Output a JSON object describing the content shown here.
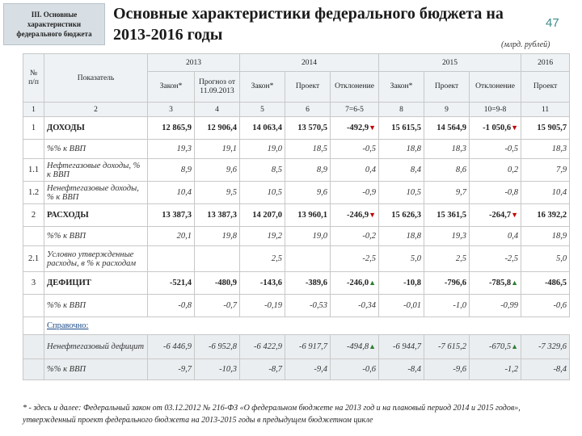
{
  "section_label": "III. Основные характеристики федерального бюджета",
  "title": "Основные характеристики федерального бюджета на 2013-2016 годы",
  "slide_number": "47",
  "units": "(млрд. рублей)",
  "header": {
    "no": "№ п/п",
    "indicator": "Показатель",
    "y2013": "2013",
    "y2014": "2014",
    "y2015": "2015",
    "y2016": "2016",
    "cols": [
      "Закон*",
      "Прогноз от 11.09.2013",
      "Закон*",
      "Проект",
      "Отклонение",
      "Закон*",
      "Проект",
      "Отклонение",
      "Проект"
    ],
    "numbers": [
      "1",
      "2",
      "3",
      "4",
      "5",
      "6",
      "7=6-5",
      "8",
      "9",
      "10=9-8",
      "11"
    ]
  },
  "rows": [
    {
      "no": "1",
      "label": "ДОХОДЫ",
      "style": "bold",
      "values": [
        "12 865,9",
        "12 906,4",
        "14 063,4",
        "13 570,5",
        "-492,9",
        "15 615,5",
        "14 564,9",
        "-1 050,6",
        "15 905,7"
      ],
      "arrows": {
        "4": "down",
        "7": "down"
      }
    },
    {
      "no": "",
      "label": "%% к ВВП",
      "style": "italic",
      "values": [
        "19,3",
        "19,1",
        "19,0",
        "18,5",
        "-0,5",
        "18,8",
        "18,3",
        "-0,5",
        "18,3"
      ]
    },
    {
      "no": "1.1",
      "label": "Нефтегазовые доходы, % к ВВП",
      "style": "italic",
      "values": [
        "8,9",
        "9,6",
        "8,5",
        "8,9",
        "0,4",
        "8,4",
        "8,6",
        "0,2",
        "7,9"
      ]
    },
    {
      "no": "1.2",
      "label": "Ненефтегазовые доходы, % к ВВП",
      "style": "italic",
      "values": [
        "10,4",
        "9,5",
        "10,5",
        "9,6",
        "-0,9",
        "10,5",
        "9,7",
        "-0,8",
        "10,4"
      ]
    },
    {
      "no": "2",
      "label": "РАСХОДЫ",
      "style": "bold",
      "values": [
        "13 387,3",
        "13 387,3",
        "14 207,0",
        "13 960,1",
        "-246,9",
        "15 626,3",
        "15 361,5",
        "-264,7",
        "16 392,2"
      ],
      "arrows": {
        "4": "down",
        "7": "down"
      }
    },
    {
      "no": "",
      "label": "%% к ВВП",
      "style": "italic",
      "values": [
        "20,1",
        "19,8",
        "19,2",
        "19,0",
        "-0,2",
        "18,8",
        "19,3",
        "0,4",
        "18,9"
      ]
    },
    {
      "no": "2.1",
      "label": "Условно утвержденные расходы, в % к расходам",
      "style": "italic",
      "values": [
        "",
        "",
        "2,5",
        "",
        "-2,5",
        "5,0",
        "2,5",
        "-2,5",
        "5,0"
      ]
    },
    {
      "no": "3",
      "label": "ДЕФИЦИТ",
      "style": "bold",
      "values": [
        "-521,4",
        "-480,9",
        "-143,6",
        "-389,6",
        "-246,0",
        "-10,8",
        "-796,6",
        "-785,8",
        "-486,5"
      ],
      "arrows": {
        "4": "up",
        "7": "up"
      }
    },
    {
      "no": "",
      "label": "%% к ВВП",
      "style": "italic",
      "values": [
        "-0,8",
        "-0,7",
        "-0,19",
        "-0,53",
        "-0,34",
        "-0,01",
        "-1,0",
        "-0,99",
        "-0,6"
      ]
    },
    {
      "no": "",
      "label": "Справочно:",
      "style": "link",
      "values": []
    },
    {
      "no": "",
      "label": "Ненефтегазовый дефицит",
      "style": "italic-shade",
      "values": [
        "-6 446,9",
        "-6 952,8",
        "-6 422,9",
        "-6 917,7",
        "-494,8",
        "-6 944,7",
        "-7 615,2",
        "-670,5",
        "-7 329,6"
      ],
      "arrows": {
        "4": "up",
        "7": "up"
      }
    },
    {
      "no": "",
      "label": "%% к ВВП",
      "style": "italic-shade",
      "values": [
        "-9,7",
        "-10,3",
        "-8,7",
        "-9,4",
        "-0,6",
        "-8,4",
        "-9,6",
        "-1,2",
        "-8,4"
      ]
    }
  ],
  "footer": "* - здесь и далее: Федеральный закон от 03.12.2012 № 216-ФЗ «О федеральном бюджете на 2013 год и на плановый период 2014 и 2015 годов», утвержденный проект федерального бюджета на 2013-2015 годы в предыдущем бюджетном цикле",
  "colors": {
    "down_arrow": "#c00000",
    "up_arrow": "#2e7d32",
    "header_bg": "#eef2f5",
    "accent": "#3c8c8c"
  }
}
